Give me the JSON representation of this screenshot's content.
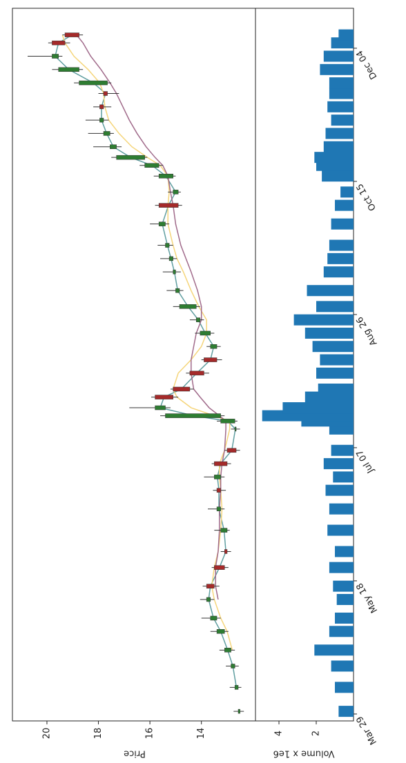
{
  "chart_data": {
    "type": "candlestick",
    "x": [
      1,
      10,
      18,
      24,
      31,
      36,
      43,
      48,
      55,
      61,
      69,
      77,
      84,
      89,
      94,
      99,
      107,
      110,
      112,
      115,
      119,
      122,
      128,
      133,
      138,
      143,
      148,
      153,
      159,
      166,
      171,
      176,
      184,
      191,
      196,
      202,
      206,
      209,
      213,
      218,
      223,
      228,
      233,
      237,
      242,
      247,
      252,
      255
    ],
    "open": [
      12.5,
      12.57,
      12.7,
      12.85,
      13.1,
      13.4,
      13.65,
      13.8,
      13.5,
      13.1,
      13.0,
      13.25,
      13.4,
      13.25,
      13.5,
      13.0,
      12.65,
      12.7,
      13.25,
      15.4,
      15.8,
      15.1,
      14.45,
      13.9,
      13.4,
      13.65,
      14.05,
      14.2,
      14.85,
      15.0,
      15.1,
      15.25,
      15.4,
      15.65,
      14.9,
      15.1,
      15.65,
      16.2,
      17.3,
      17.55,
      17.8,
      17.95,
      17.8,
      17.65,
      18.75,
      19.55,
      19.8,
      19.3
    ],
    "high": [
      12.75,
      12.9,
      13.05,
      13.3,
      13.65,
      14.0,
      14.05,
      13.95,
      13.6,
      13.25,
      13.5,
      13.75,
      13.55,
      13.9,
      13.6,
      13.1,
      12.85,
      13.4,
      15.6,
      16.8,
      15.95,
      15.2,
      14.6,
      14.0,
      13.8,
      14.25,
      14.45,
      15.1,
      15.35,
      15.5,
      15.6,
      15.7,
      16.0,
      15.8,
      15.3,
      15.85,
      16.4,
      17.5,
      18.2,
      18.4,
      18.5,
      18.2,
      18.0,
      18.95,
      19.8,
      20.75,
      19.95,
      19.4
    ],
    "low": [
      12.35,
      12.45,
      12.55,
      12.7,
      12.95,
      13.25,
      13.5,
      13.3,
      12.95,
      12.85,
      12.9,
      13.1,
      13.05,
      13.1,
      12.85,
      12.5,
      12.5,
      12.6,
      13.1,
      15.2,
      14.9,
      14.3,
      13.7,
      13.2,
      13.25,
      13.5,
      13.9,
      14.05,
      14.7,
      14.8,
      14.95,
      15.1,
      15.25,
      14.75,
      14.8,
      15.0,
      15.5,
      16.1,
      17.1,
      17.4,
      17.6,
      17.5,
      17.2,
      17.5,
      18.6,
      19.4,
      19.1,
      18.6
    ],
    "close": [
      12.57,
      12.7,
      12.85,
      13.1,
      13.4,
      13.65,
      13.8,
      13.5,
      13.1,
      13.0,
      13.25,
      13.4,
      13.25,
      13.5,
      13.0,
      12.65,
      12.7,
      13.25,
      15.4,
      15.8,
      15.1,
      14.45,
      13.9,
      13.4,
      13.65,
      14.05,
      14.2,
      14.85,
      15.0,
      15.1,
      15.25,
      15.4,
      15.65,
      14.9,
      15.1,
      15.65,
      16.2,
      17.3,
      17.55,
      17.8,
      17.95,
      17.8,
      17.65,
      18.75,
      19.55,
      19.8,
      19.3,
      18.75
    ],
    "volume": [
      0.8,
      1.0,
      1.2,
      2.1,
      1.3,
      1.0,
      0.9,
      1.1,
      1.3,
      1.0,
      1.4,
      1.3,
      1.5,
      1.1,
      1.6,
      1.2,
      1.3,
      2.8,
      4.9,
      3.8,
      2.6,
      1.9,
      2.0,
      1.8,
      2.2,
      2.6,
      3.2,
      2.0,
      2.5,
      1.6,
      1.4,
      1.3,
      1.2,
      1.0,
      0.7,
      1.7,
      2.0,
      2.1,
      1.6,
      1.5,
      1.2,
      1.4,
      1.3,
      1.3,
      1.8,
      1.6,
      1.2,
      0.8
    ],
    "up_color": "#2e7d32",
    "down_color": "#a52a2a",
    "volume_color": "#1f77b4",
    "moving_averages": [
      {
        "color": "#5f9ea0",
        "values": [
          null,
          12.64,
          12.78,
          12.98,
          13.25,
          13.53,
          13.72,
          13.65,
          13.3,
          13.05,
          13.12,
          13.32,
          13.32,
          13.38,
          13.25,
          12.82,
          12.68,
          12.98,
          14.3,
          15.6,
          15.45,
          14.78,
          14.18,
          13.65,
          13.52,
          13.85,
          14.12,
          14.52,
          14.92,
          15.05,
          15.18,
          15.32,
          15.52,
          15.28,
          15.0,
          15.38,
          15.92,
          16.75,
          17.42,
          17.68,
          17.88,
          17.88,
          17.72,
          18.2,
          19.15,
          19.68,
          19.55,
          19.02
        ]
      },
      {
        "color": "#f5d57a",
        "values": [
          null,
          null,
          null,
          12.8,
          13.0,
          13.25,
          13.5,
          13.6,
          13.5,
          13.35,
          13.25,
          13.2,
          13.25,
          13.3,
          13.3,
          13.1,
          12.9,
          12.9,
          13.5,
          14.4,
          14.95,
          15.1,
          14.9,
          14.4,
          14.0,
          13.8,
          13.8,
          14.1,
          14.4,
          14.7,
          14.95,
          15.1,
          15.3,
          15.3,
          15.25,
          15.3,
          15.6,
          16.1,
          16.7,
          17.2,
          17.6,
          17.75,
          17.8,
          17.95,
          18.4,
          18.95,
          19.3,
          19.4
        ]
      },
      {
        "color": "#a06a8a",
        "values": [
          null,
          null,
          null,
          null,
          null,
          null,
          13.35,
          13.45,
          13.45,
          13.35,
          13.3,
          13.3,
          13.25,
          13.25,
          13.2,
          13.1,
          13.05,
          13.05,
          13.3,
          13.7,
          14.05,
          14.3,
          14.4,
          14.4,
          14.3,
          14.2,
          14.0,
          14.0,
          14.15,
          14.4,
          14.6,
          14.8,
          15.0,
          15.1,
          15.2,
          15.3,
          15.5,
          15.8,
          16.15,
          16.5,
          16.8,
          17.05,
          17.3,
          17.55,
          17.9,
          18.3,
          18.6,
          18.85
        ]
      }
    ],
    "xlim": [
      -2.6,
      265
    ],
    "xticks": [
      {
        "value": 0,
        "label": "Mar 29"
      },
      {
        "value": 50,
        "label": "May 18"
      },
      {
        "value": 100,
        "label": "Jul 07"
      },
      {
        "value": 150,
        "label": "Aug 26"
      },
      {
        "value": 200,
        "label": "Oct 15"
      },
      {
        "value": 250,
        "label": "Dec 04"
      }
    ],
    "ylim": [
      11.9,
      21.34
    ],
    "yticks": [
      14,
      16,
      18,
      20
    ],
    "ylabel": "Price",
    "volume_ylim": [
      0,
      5.26
    ],
    "volume_yticks": [
      2,
      4
    ],
    "volume_ylabel": "Volume x 1e6"
  }
}
